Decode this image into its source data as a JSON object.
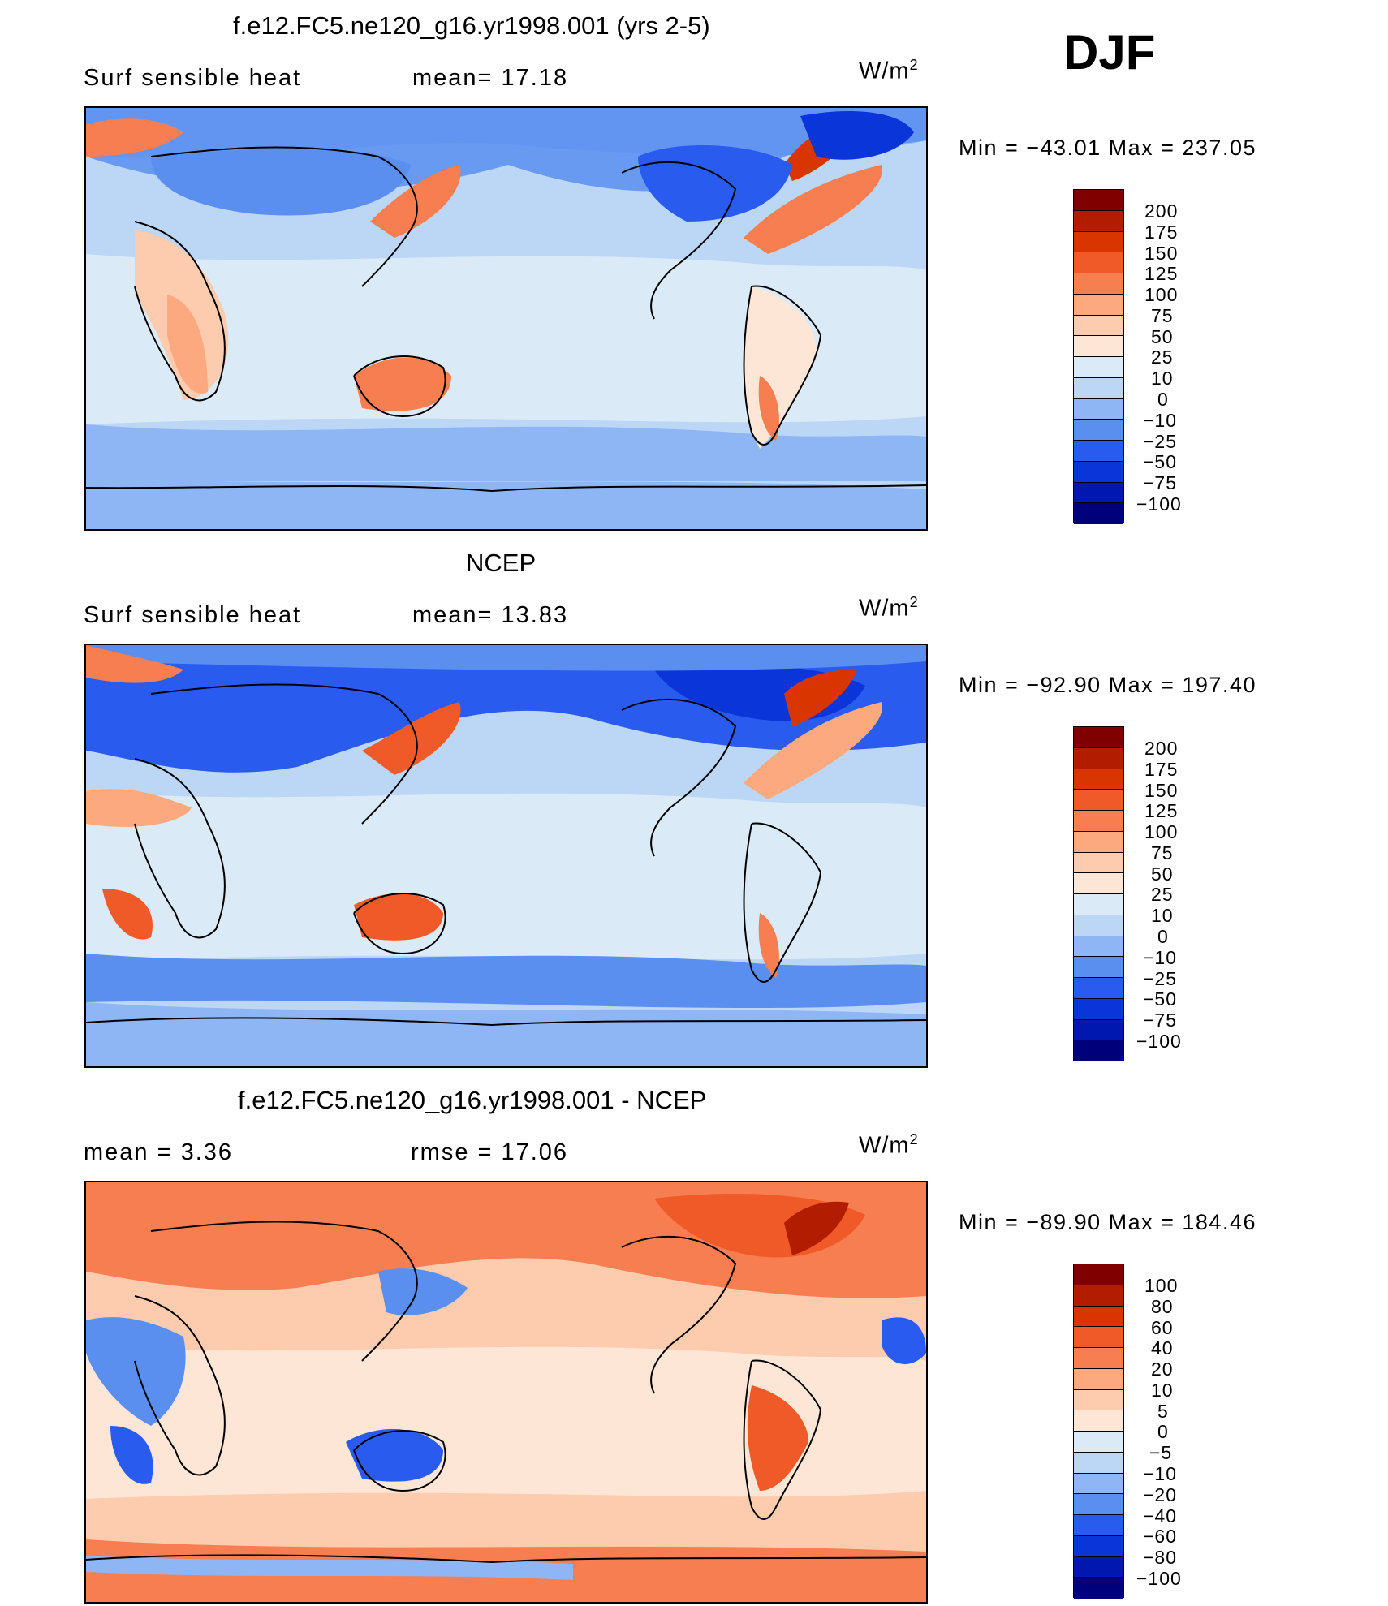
{
  "season": "DJF",
  "panels": [
    {
      "title": "f.e12.FC5.ne120_g16.yr1998.001 (yrs 2-5)",
      "left_label": "Surf  sensible  heat",
      "middle_label": "mean=   17.18",
      "units_base": "W/m",
      "units_exp": "2",
      "minmax": "Min  =  −43.01  Max  =  237.05",
      "scheme": "abs",
      "colorbar_labels": [
        "200",
        "175",
        "150",
        "125",
        "100",
        "75",
        "50",
        "25",
        "10",
        "0",
        "−10",
        "−25",
        "−50",
        "−75",
        "−100"
      ]
    },
    {
      "title": "NCEP",
      "left_label": "Surf  sensible  heat",
      "middle_label": "mean=   13.83",
      "units_base": "W/m",
      "units_exp": "2",
      "minmax": "Min  =  −92.90  Max  =  197.40",
      "scheme": "abs",
      "colorbar_labels": [
        "200",
        "175",
        "150",
        "125",
        "100",
        "75",
        "50",
        "25",
        "10",
        "0",
        "−10",
        "−25",
        "−50",
        "−75",
        "−100"
      ]
    },
    {
      "title": "f.e12.FC5.ne120_g16.yr1998.001 - NCEP",
      "left_label": "mean  =     3.36",
      "middle_label": "rmse  =    17.06",
      "units_base": "W/m",
      "units_exp": "2",
      "minmax": "Min  =  −89.90  Max  =  184.46",
      "scheme": "diff",
      "colorbar_labels": [
        "100",
        "80",
        "60",
        "40",
        "20",
        "10",
        "5",
        "0",
        "−5",
        "−10",
        "−20",
        "−40",
        "−60",
        "−80",
        "−100"
      ]
    }
  ],
  "colors": {
    "palette_top_to_bottom": [
      "#800000",
      "#b21c00",
      "#d83500",
      "#f05a28",
      "#f77e50",
      "#fca97f",
      "#fdcbad",
      "#fde6d6",
      "#dbeaf7",
      "#bcd6f6",
      "#8fb6f4",
      "#5a8ff0",
      "#2a5bef",
      "#0a35d8",
      "#0018b0",
      "#00007a"
    ]
  }
}
